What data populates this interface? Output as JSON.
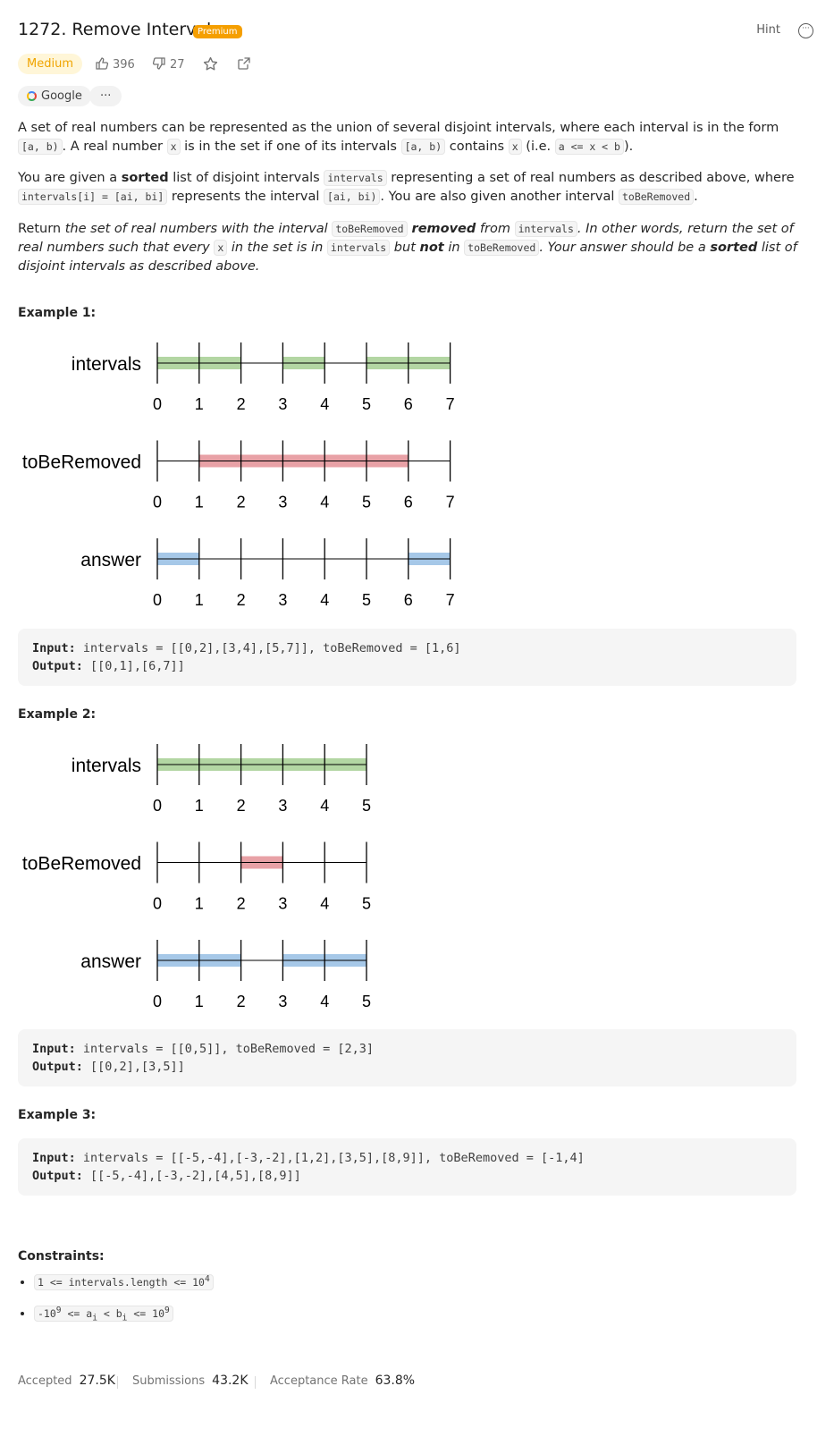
{
  "header": {
    "title": "1272. Remove Interval",
    "premium_badge": "Premium",
    "hint_label": "Hint"
  },
  "meta": {
    "difficulty": "Medium",
    "likes": "396",
    "dislikes": "27"
  },
  "tags": {
    "company": "Google",
    "more": "···"
  },
  "description": {
    "p1_a": "A set of real numbers can be represented as the union of several disjoint intervals, where each interval is in the form ",
    "p1_code1": "[a, b)",
    "p1_b": ". A real number ",
    "p1_code2": "x",
    "p1_c": " is in the set if one of its intervals ",
    "p1_code3": "[a, b)",
    "p1_d": " contains ",
    "p1_code4": "x",
    "p1_e": " (i.e. ",
    "p1_code5": "a <= x < b",
    "p1_f": ").",
    "p2_a": "You are given a ",
    "p2_bold": "sorted",
    "p2_b": " list of disjoint intervals ",
    "p2_code1": "intervals",
    "p2_c": " representing a set of real numbers as described above, where ",
    "p2_code2": "intervals[i] = [ai, bi]",
    "p2_d": " represents the interval ",
    "p2_code3": "[ai, bi)",
    "p2_e": ". You are also given another interval ",
    "p2_code4": "toBeRemoved",
    "p2_f": ".",
    "p3_a": "Return ",
    "p3_i1": "the set of real numbers with the interval ",
    "p3_code1": "toBeRemoved",
    "p3_bi1": " removed",
    "p3_i2": " from ",
    "p3_code2": "intervals",
    "p3_i3": ". In other words, return the set of real numbers such that every ",
    "p3_code3": "x",
    "p3_i4": " in the set is in ",
    "p3_code4": "intervals",
    "p3_i5": " but ",
    "p3_bi2": "not",
    "p3_i6": " in ",
    "p3_code5": "toBeRemoved",
    "p3_i7": ". Your answer should be a ",
    "p3_bi3": "sorted",
    "p3_i8": " list of disjoint intervals as described above."
  },
  "examples": [
    {
      "label": "Example 1:",
      "input_label": "Input:",
      "input": "intervals = [[0,2],[3,4],[5,7]], toBeRemoved = [1,6]",
      "output_label": "Output:",
      "output": "[[0,1],[6,7]]"
    },
    {
      "label": "Example 2:",
      "input_label": "Input:",
      "input": "intervals = [[0,5]], toBeRemoved = [2,3]",
      "output_label": "Output:",
      "output": "[[0,2],[3,5]]"
    },
    {
      "label": "Example 3:",
      "input_label": "Input:",
      "input": "intervals = [[-5,-4],[-3,-2],[1,2],[3,5],[8,9]], toBeRemoved = [-1,4]",
      "output_label": "Output:",
      "output": "[[-5,-4],[-3,-2],[4,5],[8,9]]"
    }
  ],
  "diagrams": [
    {
      "max": 7,
      "rows": [
        {
          "label": "intervals",
          "color": "#b3d6a3",
          "segments": [
            [
              0,
              2
            ],
            [
              3,
              4
            ],
            [
              5,
              7
            ]
          ]
        },
        {
          "label": "toBeRemoved",
          "color": "#e8a1a6",
          "segments": [
            [
              1,
              6
            ]
          ]
        },
        {
          "label": "answer",
          "color": "#a6c8e8",
          "segments": [
            [
              0,
              1
            ],
            [
              6,
              7
            ]
          ]
        }
      ]
    },
    {
      "max": 5,
      "rows": [
        {
          "label": "intervals",
          "color": "#b3d6a3",
          "segments": [
            [
              0,
              5
            ]
          ]
        },
        {
          "label": "toBeRemoved",
          "color": "#e8a1a6",
          "segments": [
            [
              2,
              3
            ]
          ]
        },
        {
          "label": "answer",
          "color": "#a6c8e8",
          "segments": [
            [
              0,
              2
            ],
            [
              3,
              5
            ]
          ]
        }
      ]
    }
  ],
  "constraints": {
    "label": "Constraints:",
    "c1_text": "1 <= intervals.length <= 10",
    "c1_sup": "4",
    "c2_a": "-10",
    "c2_sup1": "9",
    "c2_b": " <= a",
    "c2_sub1": "i",
    "c2_c": " < b",
    "c2_sub2": "i",
    "c2_d": " <= 10",
    "c2_sup2": "9"
  },
  "stats": {
    "accepted_label": "Accepted",
    "accepted_value": "27.5K",
    "submissions_label": "Submissions",
    "submissions_value": "43.2K",
    "rate_label": "Acceptance Rate",
    "rate_value": "63.8%"
  }
}
